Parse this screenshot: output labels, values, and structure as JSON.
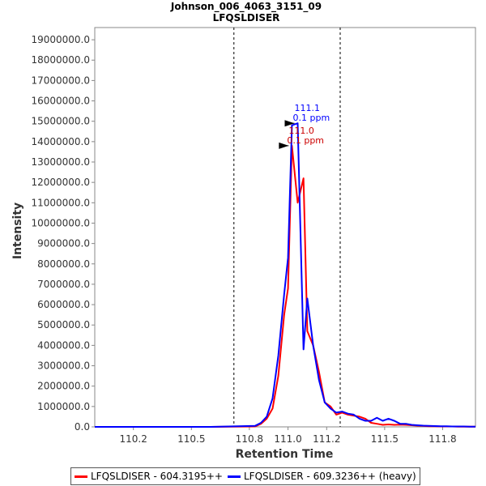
{
  "chart_data": {
    "type": "line",
    "title": "Johnson_006_4063_3151_09",
    "subtitle": "LFQSLDISER",
    "xlabel": "Retention Time",
    "ylabel": "Intensity",
    "xlim": [
      110.0,
      111.97
    ],
    "ylim": [
      0,
      19600000
    ],
    "x_ticks": [
      110.2,
      110.5,
      110.8,
      111.0,
      111.2,
      111.5,
      111.8
    ],
    "x_tick_labels": [
      "110.2",
      "110.5",
      "110.8",
      "111.0",
      "111.2",
      "111.5",
      "111.8"
    ],
    "y_ticks": [
      0,
      1000000,
      2000000,
      3000000,
      4000000,
      5000000,
      6000000,
      7000000,
      8000000,
      9000000,
      10000000,
      11000000,
      12000000,
      13000000,
      14000000,
      15000000,
      16000000,
      17000000,
      18000000,
      19000000
    ],
    "y_tick_labels": [
      "0.0",
      "1000000.0",
      "2000000.0",
      "3000000.0",
      "4000000.0",
      "5000000.0",
      "6000000.0",
      "7000000.0",
      "8000000.0",
      "9000000.0",
      "10000000.0",
      "11000000.0",
      "12000000.0",
      "13000000.0",
      "14000000.0",
      "15000000.0",
      "16000000.0",
      "17000000.0",
      "18000000.0",
      "19000000.0"
    ],
    "vlines": [
      110.72,
      111.27
    ],
    "grid": false,
    "legend_position": "bottom",
    "series": [
      {
        "name": "LFQSLDISER - 604.3195++",
        "color": "#ff0000",
        "x": [
          110.0,
          110.3,
          110.6,
          110.83,
          110.86,
          110.89,
          110.92,
          110.95,
          110.98,
          111.0,
          111.02,
          111.05,
          111.08,
          111.1,
          111.13,
          111.16,
          111.19,
          111.22,
          111.25,
          111.28,
          111.31,
          111.34,
          111.37,
          111.4,
          111.43,
          111.46,
          111.49,
          111.52,
          111.55,
          111.58,
          111.61,
          111.64,
          111.67,
          111.7,
          111.73,
          111.76,
          111.79,
          111.82,
          111.85,
          111.88,
          111.91,
          111.94,
          111.97
        ],
        "y": [
          0,
          0,
          0,
          20000,
          150000,
          400000,
          900000,
          2500000,
          5500000,
          6800000,
          13800000,
          11000000,
          12200000,
          4700000,
          4000000,
          2700000,
          1200000,
          1000000,
          600000,
          700000,
          600000,
          550000,
          500000,
          400000,
          200000,
          150000,
          100000,
          120000,
          100000,
          110000,
          100000,
          80000,
          60000,
          50000,
          30000,
          30000,
          20000,
          20000,
          20000,
          10000,
          10000,
          10000,
          10000
        ]
      },
      {
        "name": "LFQSLDISER - 609.3236++ (heavy)",
        "color": "#0000ff",
        "x": [
          110.0,
          110.3,
          110.6,
          110.83,
          110.86,
          110.89,
          110.92,
          110.95,
          110.98,
          111.0,
          111.02,
          111.05,
          111.08,
          111.1,
          111.13,
          111.16,
          111.19,
          111.22,
          111.25,
          111.28,
          111.31,
          111.34,
          111.37,
          111.4,
          111.43,
          111.46,
          111.49,
          111.52,
          111.55,
          111.58,
          111.61,
          111.64,
          111.67,
          111.7,
          111.73,
          111.76,
          111.79,
          111.82,
          111.85,
          111.88,
          111.91,
          111.94,
          111.97
        ],
        "y": [
          0,
          0,
          0,
          50000,
          200000,
          500000,
          1400000,
          3500000,
          6500000,
          8300000,
          14800000,
          14900000,
          3800000,
          6300000,
          4000000,
          2300000,
          1200000,
          900000,
          700000,
          750000,
          650000,
          600000,
          400000,
          300000,
          300000,
          450000,
          300000,
          400000,
          300000,
          150000,
          150000,
          100000,
          80000,
          60000,
          50000,
          40000,
          30000,
          30000,
          20000,
          20000,
          20000,
          10000,
          10000
        ]
      }
    ],
    "annotations": [
      {
        "line1": "111.1",
        "line2": "0.1 ppm",
        "color": "#0000ff",
        "x": 111.05,
        "y": 14900000
      },
      {
        "line1": "111.0",
        "line2": "0.1 ppm",
        "color": "#cc0000",
        "x": 111.02,
        "y": 13800000
      }
    ]
  }
}
